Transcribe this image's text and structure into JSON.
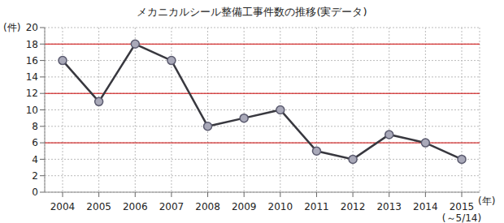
{
  "chart_data": {
    "type": "line",
    "title": "メカニカルシール整備工事件数の推移(実データ)",
    "y_label": "(件)",
    "x_label": "(年)",
    "categories": [
      "2004",
      "2005",
      "2006",
      "2007",
      "2008",
      "2009",
      "2010",
      "2011",
      "2012",
      "2013",
      "2014",
      "2015\n(～5/14)"
    ],
    "values": [
      16,
      11,
      18,
      16,
      8,
      9,
      10,
      5,
      4,
      7,
      6,
      4
    ],
    "color": "#38383f",
    "marker": "circle",
    "ylim": [
      0,
      20
    ],
    "yticks": [
      0,
      2,
      4,
      6,
      8,
      10,
      12,
      14,
      16,
      18,
      20
    ],
    "grid": true,
    "reference_lines": {
      "values": [
        6,
        12,
        18
      ],
      "color": "#cc0000"
    }
  }
}
